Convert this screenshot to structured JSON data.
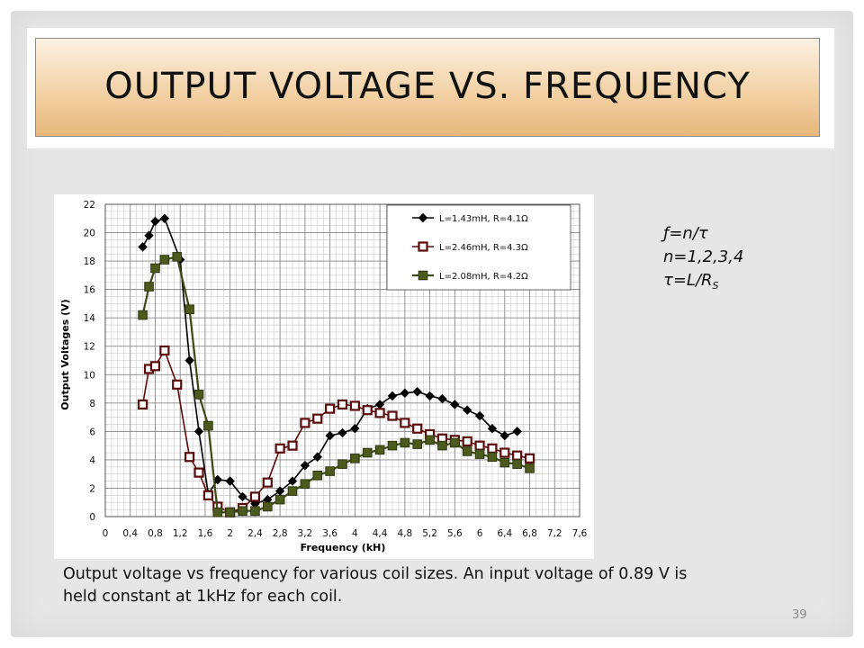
{
  "slide": {
    "title": "OUTPUT VOLTAGE VS. FREQUENCY",
    "formula": {
      "line1": "ƒ=n/τ",
      "line2": "n=1,2,3,4",
      "line3_main": "τ=L/R",
      "line3_sub": "S"
    },
    "caption": "Output voltage vs frequency for various coil sizes. An input voltage of 0.89 V is held constant at 1kHz for each coil.",
    "page_number": "39"
  },
  "chart_data": {
    "type": "line",
    "xlabel": "Frequency (kH)",
    "ylabel": "Output Voltages (V)",
    "xlim": [
      0,
      7.6
    ],
    "ylim": [
      0,
      22
    ],
    "x_ticks": [
      "0",
      "0,4",
      "0,8",
      "1,2",
      "1,6",
      "2",
      "2,4",
      "2,8",
      "3,2",
      "3,6",
      "4",
      "4,4",
      "4,8",
      "5,2",
      "5,6",
      "6",
      "6,4",
      "6,8",
      "7,2",
      "7,6"
    ],
    "y_ticks": [
      "0",
      "2",
      "4",
      "6",
      "8",
      "10",
      "12",
      "14",
      "16",
      "18",
      "20",
      "22"
    ],
    "grid": true,
    "legend_position": "top-right",
    "series": [
      {
        "name": "L=1.43mH, R=4.1Ω",
        "color": "#000000",
        "marker": "diamond",
        "points": [
          [
            0.6,
            19.0
          ],
          [
            0.7,
            19.8
          ],
          [
            0.8,
            20.8
          ],
          [
            0.95,
            21.0
          ],
          [
            1.2,
            18.1
          ],
          [
            1.35,
            11.0
          ],
          [
            1.5,
            6.0
          ],
          [
            1.65,
            1.6
          ],
          [
            1.8,
            2.6
          ],
          [
            2.0,
            2.5
          ],
          [
            2.2,
            1.4
          ],
          [
            2.4,
            0.9
          ],
          [
            2.6,
            1.2
          ],
          [
            2.8,
            1.8
          ],
          [
            3.0,
            2.5
          ],
          [
            3.2,
            3.6
          ],
          [
            3.4,
            4.2
          ],
          [
            3.6,
            5.7
          ],
          [
            3.8,
            5.9
          ],
          [
            4.0,
            6.2
          ],
          [
            4.2,
            7.6
          ],
          [
            4.4,
            7.9
          ],
          [
            4.6,
            8.5
          ],
          [
            4.8,
            8.7
          ],
          [
            5.0,
            8.8
          ],
          [
            5.2,
            8.5
          ],
          [
            5.4,
            8.3
          ],
          [
            5.6,
            7.9
          ],
          [
            5.8,
            7.5
          ],
          [
            6.0,
            7.1
          ],
          [
            6.2,
            6.2
          ],
          [
            6.4,
            5.7
          ],
          [
            6.6,
            6.0
          ]
        ]
      },
      {
        "name": "L=2.46mH, R=4.3Ω",
        "color": "#5a0b0b",
        "marker": "square-open",
        "points": [
          [
            0.6,
            7.9
          ],
          [
            0.7,
            10.4
          ],
          [
            0.8,
            10.6
          ],
          [
            0.95,
            11.7
          ],
          [
            1.15,
            9.3
          ],
          [
            1.35,
            4.2
          ],
          [
            1.5,
            3.1
          ],
          [
            1.65,
            1.5
          ],
          [
            1.8,
            0.7
          ],
          [
            2.0,
            0.3
          ],
          [
            2.2,
            0.6
          ],
          [
            2.4,
            1.4
          ],
          [
            2.6,
            2.4
          ],
          [
            2.8,
            4.8
          ],
          [
            3.0,
            5.0
          ],
          [
            3.2,
            6.6
          ],
          [
            3.4,
            6.9
          ],
          [
            3.6,
            7.6
          ],
          [
            3.8,
            7.9
          ],
          [
            4.0,
            7.8
          ],
          [
            4.2,
            7.5
          ],
          [
            4.4,
            7.3
          ],
          [
            4.6,
            7.1
          ],
          [
            4.8,
            6.6
          ],
          [
            5.0,
            6.2
          ],
          [
            5.2,
            5.8
          ],
          [
            5.4,
            5.5
          ],
          [
            5.6,
            5.4
          ],
          [
            5.8,
            5.3
          ],
          [
            6.0,
            5.0
          ],
          [
            6.2,
            4.8
          ],
          [
            6.4,
            4.5
          ],
          [
            6.6,
            4.3
          ],
          [
            6.8,
            4.1
          ]
        ]
      },
      {
        "name": "L=2.08mH, R=4.2Ω",
        "color": "#4d5a1e",
        "marker": "square-filled",
        "points": [
          [
            0.6,
            14.2
          ],
          [
            0.7,
            16.2
          ],
          [
            0.8,
            17.5
          ],
          [
            0.95,
            18.1
          ],
          [
            1.15,
            18.3
          ],
          [
            1.35,
            14.6
          ],
          [
            1.5,
            8.6
          ],
          [
            1.65,
            6.4
          ],
          [
            1.8,
            0.3
          ],
          [
            2.0,
            0.3
          ],
          [
            2.2,
            0.4
          ],
          [
            2.4,
            0.4
          ],
          [
            2.6,
            0.7
          ],
          [
            2.8,
            1.2
          ],
          [
            3.0,
            1.8
          ],
          [
            3.2,
            2.3
          ],
          [
            3.4,
            2.9
          ],
          [
            3.6,
            3.2
          ],
          [
            3.8,
            3.7
          ],
          [
            4.0,
            4.1
          ],
          [
            4.2,
            4.5
          ],
          [
            4.4,
            4.7
          ],
          [
            4.6,
            5.0
          ],
          [
            4.8,
            5.2
          ],
          [
            5.0,
            5.1
          ],
          [
            5.2,
            5.4
          ],
          [
            5.4,
            5.0
          ],
          [
            5.6,
            5.2
          ],
          [
            5.8,
            4.6
          ],
          [
            6.0,
            4.4
          ],
          [
            6.2,
            4.2
          ],
          [
            6.4,
            3.8
          ],
          [
            6.6,
            3.7
          ],
          [
            6.8,
            3.4
          ]
        ]
      }
    ]
  }
}
